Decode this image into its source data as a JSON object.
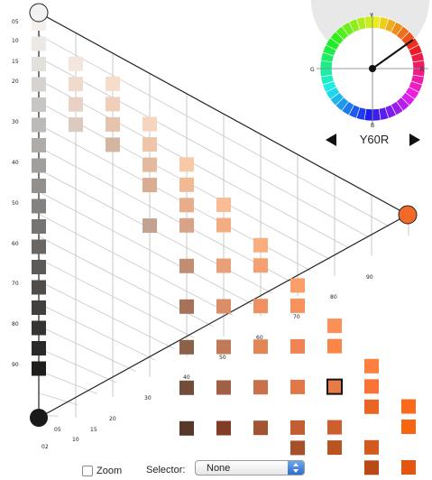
{
  "colors": {
    "line": "#222222",
    "grid": "#c8c8c8",
    "selection_border": "#111111",
    "white_node": "#f2f2f2",
    "black_node": "#1a1a1a",
    "hue_node": "#f26a2a"
  },
  "triangle": {
    "left_scale_ticks": [
      "05",
      "10",
      "15",
      "20",
      "30",
      "40",
      "50",
      "60",
      "70",
      "80",
      "90"
    ],
    "bottom_scale_ticks": [
      "02",
      "05",
      "10",
      "15",
      "20",
      "30",
      "40",
      "50",
      "60",
      "70",
      "80",
      "90"
    ]
  },
  "swatches": [
    {
      "c": "#f3efea",
      "g": [
        1,
        0
      ]
    },
    {
      "c": "#ece8e4",
      "g": [
        1,
        1
      ]
    },
    {
      "c": "#e3dfdb",
      "g": [
        1,
        2
      ]
    },
    {
      "c": "#d6d2cf",
      "g": [
        1,
        3
      ]
    },
    {
      "c": "#c9c5c2",
      "g": [
        1,
        4
      ]
    },
    {
      "c": "#bdb9b6",
      "g": [
        1,
        5
      ]
    },
    {
      "c": "#afaba8",
      "g": [
        1,
        6
      ]
    },
    {
      "c": "#a19e9b",
      "g": [
        1,
        7
      ]
    },
    {
      "c": "#938f8c",
      "g": [
        1,
        8
      ]
    },
    {
      "c": "#85817f",
      "g": [
        1,
        9
      ]
    },
    {
      "c": "#777371",
      "g": [
        1,
        10
      ]
    },
    {
      "c": "#6a6664",
      "g": [
        1,
        11
      ]
    },
    {
      "c": "#5c5957",
      "g": [
        1,
        12
      ]
    },
    {
      "c": "#4f4c4a",
      "g": [
        1,
        13
      ]
    },
    {
      "c": "#42403e",
      "g": [
        1,
        14
      ]
    },
    {
      "c": "#363432",
      "g": [
        1,
        15
      ]
    },
    {
      "c": "#2b2928",
      "g": [
        1,
        16
      ]
    },
    {
      "c": "#201e1d",
      "g": [
        1,
        17
      ]
    },
    {
      "c": "#f4e6dc",
      "g": [
        2,
        1
      ]
    },
    {
      "c": "#efdacd",
      "g": [
        2,
        2
      ]
    },
    {
      "c": "#e7d2c5",
      "g": [
        2,
        3
      ]
    },
    {
      "c": "#dccabe",
      "g": [
        2,
        4
      ]
    },
    {
      "c": "#f6dccb",
      "g": [
        3,
        1
      ]
    },
    {
      "c": "#f0cfba",
      "g": [
        3,
        2
      ]
    },
    {
      "c": "#e5c3ae",
      "g": [
        3,
        3
      ]
    },
    {
      "c": "#d4b5a1",
      "g": [
        3,
        4
      ]
    },
    {
      "c": "#f7d4bd",
      "g": [
        4,
        2
      ]
    },
    {
      "c": "#efc5aa",
      "g": [
        4,
        3
      ]
    },
    {
      "c": "#e5b99e",
      "g": [
        4,
        4
      ]
    },
    {
      "c": "#d9ad92",
      "g": [
        4,
        5
      ]
    },
    {
      "c": "#c3a28f",
      "g": [
        4,
        7
      ]
    },
    {
      "c": "#f8c8a7",
      "g": [
        5,
        3
      ]
    },
    {
      "c": "#f2b995",
      "g": [
        5,
        4
      ]
    },
    {
      "c": "#e8ad8a",
      "g": [
        5,
        5
      ]
    },
    {
      "c": "#dba28a",
      "g": [
        5,
        6
      ]
    },
    {
      "c": "#c38d74",
      "g": [
        5,
        8
      ]
    },
    {
      "c": "#a77358",
      "g": [
        5,
        10
      ]
    },
    {
      "c": "#8d6048",
      "g": [
        5,
        12
      ]
    },
    {
      "c": "#724d3a",
      "g": [
        5,
        14
      ]
    },
    {
      "c": "#583829",
      "g": [
        5,
        16
      ]
    },
    {
      "c": "#f9bc94",
      "g": [
        6,
        4
      ]
    },
    {
      "c": "#f4ad82",
      "g": [
        6,
        5
      ]
    },
    {
      "c": "#e99f77",
      "g": [
        6,
        7
      ]
    },
    {
      "c": "#d98e68",
      "g": [
        6,
        9
      ]
    },
    {
      "c": "#bf7a58",
      "g": [
        6,
        11
      ]
    },
    {
      "c": "#a16046",
      "g": [
        6,
        13
      ]
    },
    {
      "c": "#823d28",
      "g": [
        6,
        15
      ]
    },
    {
      "c": "#faae7e",
      "g": [
        7,
        5
      ]
    },
    {
      "c": "#f6a071",
      "g": [
        7,
        6
      ]
    },
    {
      "c": "#ee9162",
      "g": [
        7,
        8
      ]
    },
    {
      "c": "#e28557",
      "g": [
        7,
        10
      ]
    },
    {
      "c": "#c8714a",
      "g": [
        7,
        12
      ]
    },
    {
      "c": "#a2532f",
      "g": [
        7,
        14
      ]
    },
    {
      "c": "#fb9f6a",
      "g": [
        8,
        6
      ]
    },
    {
      "c": "#f8925c",
      "g": [
        8,
        7
      ]
    },
    {
      "c": "#f08454",
      "g": [
        8,
        9
      ]
    },
    {
      "c": "#e1784a",
      "g": [
        8,
        11
      ]
    },
    {
      "c": "#c35e34",
      "g": [
        8,
        13
      ]
    },
    {
      "c": "#a64f2a",
      "g": [
        8,
        14
      ]
    },
    {
      "c": "#fc8f56",
      "g": [
        9,
        7
      ]
    },
    {
      "c": "#f98648",
      "g": [
        9,
        8
      ]
    },
    {
      "c": "#e87a45",
      "g": [
        9,
        10
      ],
      "selected": true
    },
    {
      "c": "#cc5f2b",
      "g": [
        9,
        12
      ]
    },
    {
      "c": "#b95421",
      "g": [
        9,
        13
      ]
    },
    {
      "c": "#fc7f3f",
      "g": [
        10,
        8
      ]
    },
    {
      "c": "#f97236",
      "g": [
        10,
        9
      ]
    },
    {
      "c": "#e96524",
      "g": [
        10,
        10
      ]
    },
    {
      "c": "#d25a1c",
      "g": [
        10,
        12
      ]
    },
    {
      "c": "#b94a16",
      "g": [
        10,
        13
      ]
    },
    {
      "c": "#fa6a1a",
      "g": [
        11,
        9
      ]
    },
    {
      "c": "#f86510",
      "g": [
        11,
        10
      ]
    },
    {
      "c": "#e4560f",
      "g": [
        11,
        12
      ]
    },
    {
      "c": "#fb6a10",
      "g": [
        12,
        9
      ]
    }
  ],
  "hue_wheel": {
    "labels": {
      "top": "Y",
      "right": "R",
      "bottom": "B",
      "left": "G"
    },
    "selected_hue": "Y60R"
  },
  "footer": {
    "zoom_label": "Zoom",
    "zoom_checked": false,
    "selector_label": "Selector:",
    "selector_value": "None"
  }
}
